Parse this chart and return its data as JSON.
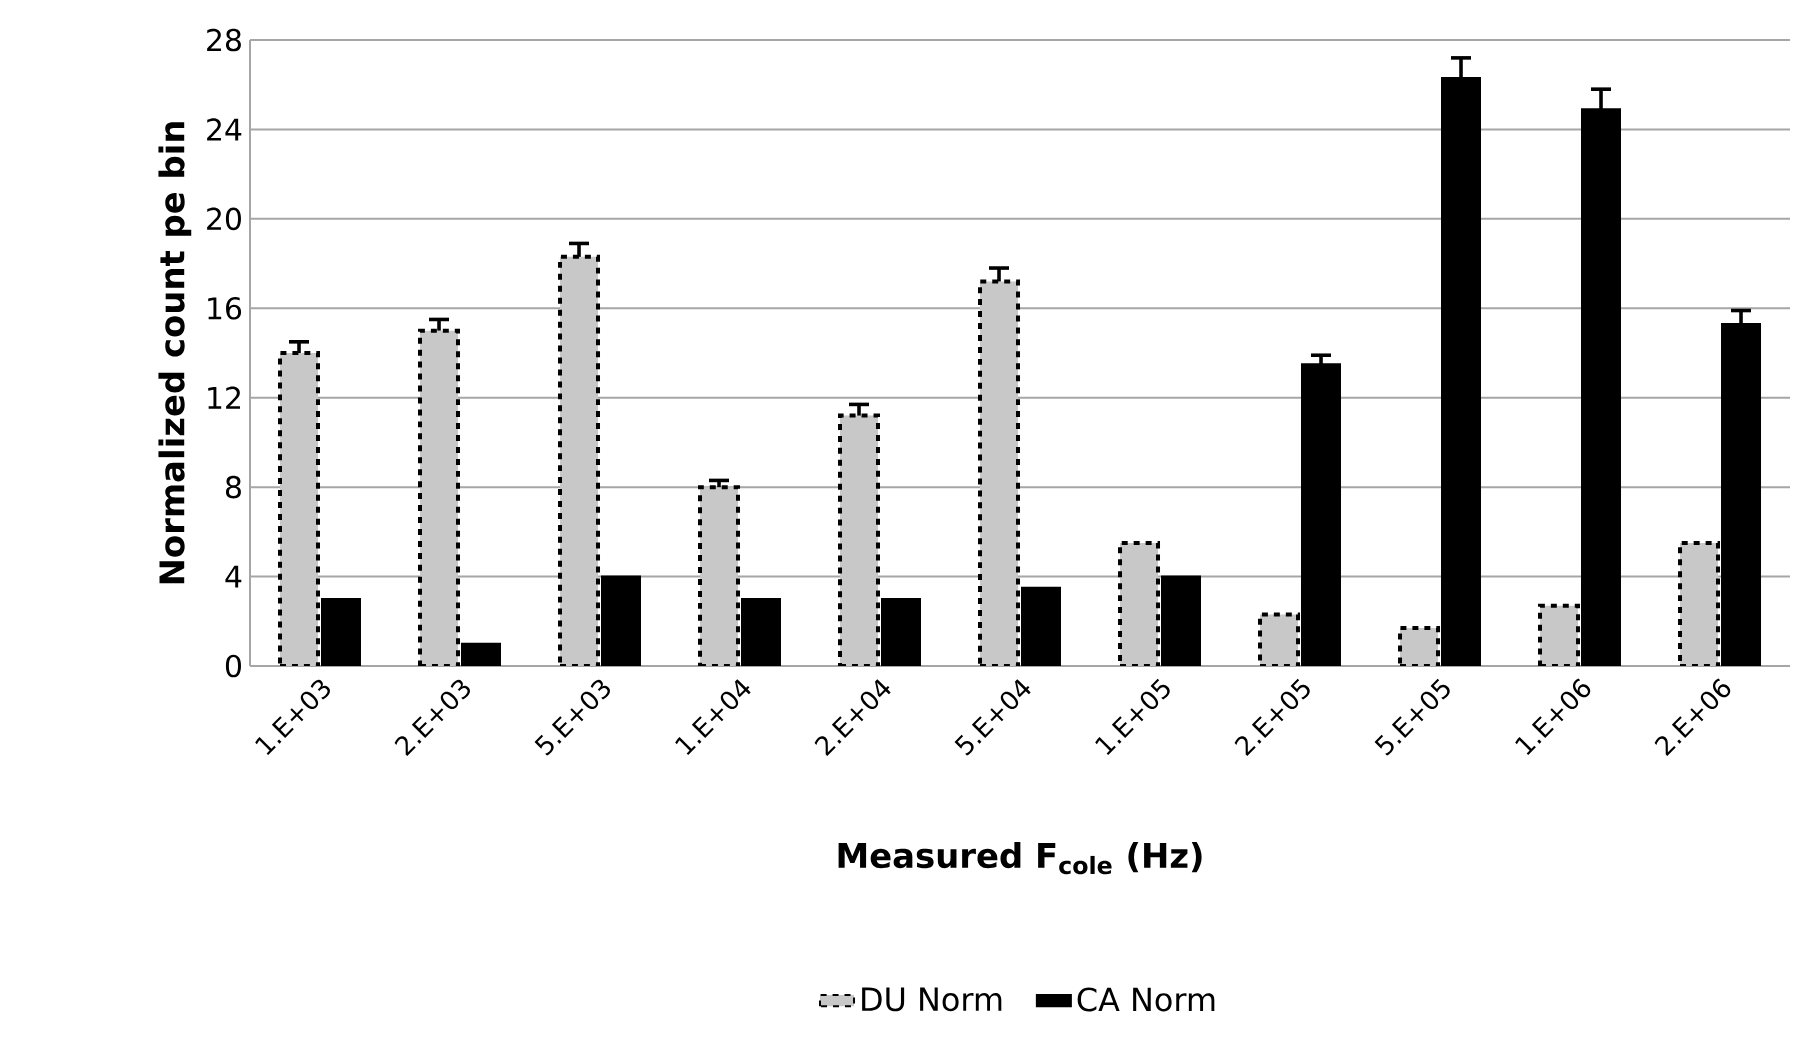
{
  "chart_data": {
    "type": "bar",
    "xlabel": "Measured F$_{cole}$ (Hz)",
    "ylabel": "Normalized count pe bin",
    "categories": [
      "1.E+03",
      "2.E+03",
      "5.E+03",
      "1.E+04",
      "2.E+04",
      "5.E+04",
      "1.E+05",
      "2.E+05",
      "5.E+05",
      "1.E+06",
      "2.E+06"
    ],
    "series": [
      {
        "name": "DU Norm",
        "color": "#c8c8c8",
        "line_style": "dashed",
        "values": [
          14.0,
          15.0,
          18.3,
          8.0,
          11.2,
          17.2,
          5.5,
          2.3,
          1.7,
          2.7,
          5.5
        ],
        "errors": [
          0.5,
          0.5,
          0.6,
          0.3,
          0.5,
          0.6,
          null,
          null,
          null,
          null,
          null
        ]
      },
      {
        "name": "CA Norm",
        "color": "#000000",
        "line_style": "solid",
        "values": [
          3.0,
          1.0,
          4.0,
          3.0,
          3.0,
          3.5,
          4.0,
          13.5,
          26.3,
          24.9,
          15.3
        ],
        "errors": [
          null,
          null,
          null,
          null,
          null,
          null,
          null,
          0.4,
          0.9,
          0.9,
          0.6
        ]
      }
    ],
    "ylim": [
      0,
      28
    ],
    "yticks": [
      0,
      4,
      8,
      12,
      16,
      20,
      24,
      28
    ],
    "grid": "y",
    "legend": "bottom"
  }
}
